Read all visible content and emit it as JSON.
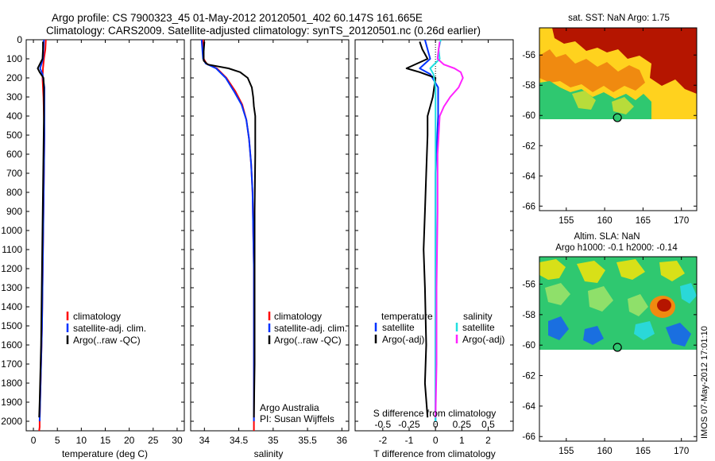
{
  "header": {
    "line1": "Argo profile: CS 7900323_45 01-May-2012 20120501_402 60.147S 161.665E",
    "line2": "Climatology: CARS2009. Satellite-adjusted climatology: synTS_20120501.nc (0.26d earlier)"
  },
  "colors": {
    "climatology": "#ff0000",
    "satellite": "#0033ff",
    "argo": "#000000",
    "satellite_s": "#22e0e0",
    "argo_s": "#ff22ff"
  },
  "depth_axis": {
    "ticks": [
      0,
      100,
      200,
      300,
      400,
      500,
      600,
      700,
      800,
      900,
      1000,
      1100,
      1200,
      1300,
      1400,
      1500,
      1600,
      1700,
      1800,
      1900,
      2000
    ],
    "range": [
      0,
      2050
    ],
    "reversed": true
  },
  "panel_temperature": {
    "xlabel": "temperature (deg C)",
    "xlim": [
      -1.5,
      31.5
    ],
    "xticks": [
      0,
      5,
      10,
      15,
      20,
      25,
      30
    ],
    "legend": [
      "climatology",
      "satellite-adj. clim.",
      "Argo(..raw -QC)"
    ]
  },
  "panel_salinity": {
    "xlabel": "salinity",
    "xlim": [
      33.8,
      36.1
    ],
    "xticks": [
      "34",
      "34.5",
      "35",
      "35.5",
      "36"
    ],
    "xtick_values": [
      34,
      34.5,
      35,
      35.5,
      36
    ],
    "legend": [
      "climatology",
      "satellite-adj. clim.",
      "Argo(..raw -QC)"
    ],
    "note1": "Argo Australia",
    "note2": "PI: Susan Wijffels"
  },
  "panel_difference": {
    "xlabel": "T difference from climatology",
    "xlim": [
      -3.05,
      2.95
    ],
    "xticks": [
      "-2",
      "-1",
      "0",
      "1",
      "2"
    ],
    "xtick_values": [
      -2,
      -1,
      0,
      1,
      2
    ],
    "s_axis_label": "S difference from climatology",
    "s_ticks": [
      "-0.5",
      "-0.25",
      "0",
      "0.25",
      "0.5"
    ],
    "s_tick_values": [
      -0.5,
      -0.25,
      0,
      0.25,
      0.5
    ],
    "s_scale": 4,
    "legend_t_header": "temperature",
    "legend_s_header": "salinity",
    "legend_t": [
      "satellite",
      "Argo(-adj)"
    ],
    "legend_s": [
      "satellite",
      "Argo(-adj)"
    ]
  },
  "map_sst": {
    "title": "sat. SST: NaN Argo: 1.75",
    "lat_ticks": [
      "-56",
      "-58",
      "-60",
      "-62",
      "-64",
      "-66"
    ],
    "lat_values": [
      -56,
      -58,
      -60,
      -62,
      -64,
      -66
    ],
    "lon_ticks": [
      "155",
      "160",
      "165",
      "170"
    ],
    "lon_values": [
      155,
      160,
      165,
      170
    ],
    "xlim": [
      151.5,
      172
    ],
    "ylim": [
      -66.3,
      -54.2
    ],
    "data_south_limit": -60.1,
    "float_lon": 161.665,
    "float_lat": -60.147
  },
  "map_sla": {
    "title1": "Altim. SLA: NaN",
    "title2": "Argo h1000: -0.1 h2000: -0.14",
    "lat_ticks": [
      "-56",
      "-58",
      "-60",
      "-62",
      "-64",
      "-66"
    ],
    "lat_values": [
      -56,
      -58,
      -60,
      -62,
      -64,
      -66
    ],
    "lon_ticks": [
      "155",
      "160",
      "165",
      "170"
    ],
    "lon_values": [
      155,
      160,
      165,
      170
    ],
    "xlim": [
      151.5,
      172
    ],
    "ylim": [
      -66.3,
      -54.2
    ],
    "data_south_limit": -60.1,
    "float_lon": 161.665,
    "float_lat": -60.147
  },
  "stamp": "IMOS 07-May-2012 17:01:10",
  "chart_data": [
    {
      "type": "line",
      "panel": "temperature",
      "xlabel": "temperature (deg C)",
      "ylabel": "",
      "xlim": [
        -1.5,
        31.5
      ],
      "ylim": [
        2050,
        0
      ],
      "series": [
        {
          "name": "climatology",
          "x": [
            2.6,
            2.5,
            2.2,
            2.0,
            1.9,
            2.1,
            2.2,
            2.3,
            2.2,
            2.1,
            2.0,
            1.9,
            1.8,
            1.7,
            1.6,
            1.5,
            1.4,
            1.3,
            1.3,
            1.2
          ],
          "y": [
            0,
            50,
            100,
            150,
            200,
            300,
            400,
            500,
            700,
            900,
            1100,
            1300,
            1500,
            1600,
            1700,
            1800,
            1900,
            2000,
            2030,
            2050
          ]
        },
        {
          "name": "satellite-adj. clim.",
          "x": [
            2.2,
            2.1,
            2.0,
            1.4,
            1.9,
            2.3,
            2.3,
            2.3,
            2.2,
            2.1,
            2.0,
            1.9,
            1.8,
            1.7,
            1.6,
            1.5,
            1.4,
            1.3
          ],
          "y": [
            0,
            50,
            100,
            150,
            180,
            250,
            400,
            500,
            700,
            900,
            1100,
            1300,
            1500,
            1600,
            1700,
            1800,
            1900,
            2000
          ]
        },
        {
          "name": "Argo(..raw -QC)",
          "x": [
            2.0,
            2.0,
            1.9,
            0.9,
            1.3,
            2.1,
            2.2,
            2.2,
            2.1,
            2.0,
            1.9,
            1.8,
            1.7,
            1.6,
            1.5,
            1.4,
            1.3,
            1.2
          ],
          "y": [
            10,
            50,
            100,
            150,
            170,
            200,
            250,
            400,
            600,
            800,
            1000,
            1200,
            1400,
            1600,
            1700,
            1800,
            1900,
            1980
          ]
        }
      ]
    },
    {
      "type": "line",
      "panel": "salinity",
      "xlabel": "salinity",
      "ylabel": "",
      "xlim": [
        33.8,
        36.1
      ],
      "ylim": [
        2050,
        0
      ],
      "series": [
        {
          "name": "climatology",
          "x": [
            33.98,
            33.98,
            33.99,
            34.03,
            34.18,
            34.32,
            34.45,
            34.55,
            34.61,
            34.65,
            34.68,
            34.7,
            34.71,
            34.72,
            34.72,
            34.72,
            34.72
          ],
          "y": [
            0,
            50,
            100,
            125,
            150,
            200,
            270,
            340,
            420,
            520,
            650,
            800,
            1000,
            1200,
            1500,
            1800,
            2050
          ]
        },
        {
          "name": "satellite-adj. clim.",
          "x": [
            33.96,
            33.97,
            33.98,
            34.02,
            34.17,
            34.31,
            34.43,
            34.54,
            34.61,
            34.65,
            34.68,
            34.7,
            34.71,
            34.72,
            34.72,
            34.72
          ],
          "y": [
            0,
            50,
            100,
            125,
            150,
            200,
            270,
            340,
            420,
            520,
            650,
            800,
            1000,
            1200,
            1500,
            2000
          ]
        },
        {
          "name": "Argo(..raw -QC)",
          "x": [
            34.0,
            33.99,
            33.99,
            34.05,
            34.35,
            34.52,
            34.63,
            34.69,
            34.71,
            34.72,
            34.74,
            34.74,
            34.73,
            34.73,
            34.73,
            34.72
          ],
          "y": [
            10,
            60,
            110,
            130,
            150,
            170,
            200,
            250,
            300,
            350,
            400,
            600,
            900,
            1300,
            1700,
            1980
          ]
        }
      ]
    },
    {
      "type": "line",
      "panel": "difference",
      "xlabel": "T difference from climatology",
      "ylabel": "",
      "xlim": [
        -3.05,
        2.95
      ],
      "ylim": [
        2050,
        0
      ],
      "series": [
        {
          "name": "temperature: satellite",
          "x": [
            -0.4,
            -0.3,
            -0.2,
            -0.6,
            -0.2,
            0.1,
            0.1,
            0.0,
            0.0,
            0.0,
            0.0,
            0.0
          ],
          "y": [
            0,
            50,
            100,
            150,
            180,
            250,
            400,
            700,
            1000,
            1400,
            1800,
            2000
          ]
        },
        {
          "name": "temperature: Argo(-adj)",
          "x": [
            -0.6,
            -0.5,
            -0.3,
            -1.1,
            -0.6,
            0.0,
            -0.1,
            -0.3,
            -0.3,
            -0.35,
            -0.4,
            -0.45,
            -0.4,
            -0.35,
            -0.4,
            -0.3
          ],
          "y": [
            10,
            50,
            100,
            150,
            170,
            200,
            300,
            400,
            500,
            700,
            900,
            1100,
            1300,
            1600,
            1800,
            1980
          ]
        },
        {
          "name": "salinity: satellite",
          "x": [
            0.05,
            0.03,
            0.04,
            -0.05,
            -0.02,
            0.0,
            0.0,
            0.0,
            0.0,
            0.0,
            0.0
          ],
          "y": [
            0,
            50,
            100,
            150,
            180,
            250,
            400,
            700,
            1000,
            1500,
            2000
          ]
        },
        {
          "name": "salinity: Argo(-adj)",
          "x": [
            0.04,
            0.03,
            0.02,
            0.08,
            0.18,
            0.24,
            0.26,
            0.22,
            0.14,
            0.08,
            0.04,
            0.02,
            0.02,
            0.01,
            0.01,
            0.0
          ],
          "y": [
            10,
            50,
            100,
            130,
            150,
            170,
            200,
            250,
            300,
            350,
            400,
            600,
            900,
            1300,
            1700,
            1980
          ]
        }
      ]
    }
  ]
}
